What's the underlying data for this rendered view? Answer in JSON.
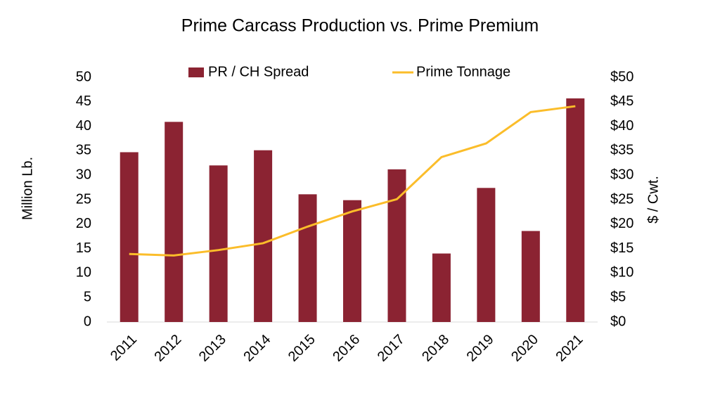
{
  "chart_data": {
    "type": "combo",
    "title": "Prime Carcass Production vs. Prime Premium",
    "categories": [
      "2011",
      "2012",
      "2013",
      "2014",
      "2015",
      "2016",
      "2017",
      "2018",
      "2019",
      "2020",
      "2021"
    ],
    "series": [
      {
        "name": "PR / CH Spread",
        "type": "bar",
        "axis": "y2",
        "color": "#8b2332",
        "values": [
          34.7,
          40.9,
          32.0,
          35.1,
          26.1,
          24.9,
          31.2,
          14.0,
          27.4,
          18.6,
          45.7
        ]
      },
      {
        "name": "Prime Tonnage",
        "type": "line",
        "axis": "y",
        "color": "#fbbd2a",
        "values": [
          13.9,
          13.6,
          14.7,
          16.1,
          19.5,
          22.6,
          25.1,
          33.7,
          36.5,
          42.9,
          44.1
        ]
      }
    ],
    "ylabel": "Million Lb.",
    "y2label": "$ / Cwt.",
    "ylim": [
      0,
      50
    ],
    "yticks": [
      0,
      5,
      10,
      15,
      20,
      25,
      30,
      35,
      40,
      45,
      50
    ],
    "y2lim": [
      0,
      50
    ],
    "y2ticks": [
      {
        "value": 0,
        "label": "$0"
      },
      {
        "value": 5,
        "label": "$5"
      },
      {
        "value": 10,
        "label": "$10"
      },
      {
        "value": 15,
        "label": "$15"
      },
      {
        "value": 20,
        "label": "$20"
      },
      {
        "value": 25,
        "label": "$25"
      },
      {
        "value": 30,
        "label": "$30"
      },
      {
        "value": 35,
        "label": "$35"
      },
      {
        "value": 40,
        "label": "$40"
      },
      {
        "value": 45,
        "label": "$45"
      },
      {
        "value": 50,
        "label": "$50"
      }
    ],
    "grid": false,
    "legend": "top"
  }
}
